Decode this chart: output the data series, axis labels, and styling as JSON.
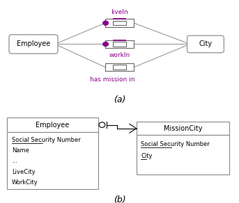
{
  "bg_color": "#ffffff",
  "text_color": "#000000",
  "purple_color": "#880088",
  "gray_color": "#999999",
  "fig_width": 3.43,
  "fig_height": 2.92,
  "label_a": "(a)",
  "label_b": "(b)",
  "liveIn_label": "liveIn",
  "workIn_label": "workIn",
  "hasMission_label": "has mission in",
  "employee_label": "Employee",
  "city_label": "City",
  "missioncity_label": "MissionCity",
  "emp_attrs": [
    "Social Security Number",
    "Name",
    "...",
    "LiveCity",
    "WorkCity"
  ],
  "mc_attrs": [
    "Social Security Number",
    "City"
  ]
}
